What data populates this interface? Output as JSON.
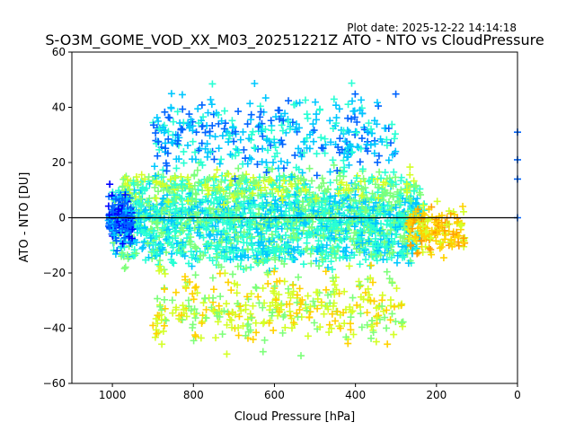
{
  "chart_data": {
    "type": "scatter",
    "title": "S-O3M_GOME_VOD_XX_M03_20251221Z ATO - NTO vs CloudPressure",
    "subtitle": "Plot date: 2025-12-22 14:14:18",
    "xlabel": "Cloud Pressure [hPa]",
    "ylabel": "ATO - NTO [DU]",
    "xlim": [
      1100,
      0
    ],
    "ylim": [
      -60,
      60
    ],
    "x_inverted": true,
    "x_ticks": [
      1000,
      800,
      600,
      400,
      200,
      0
    ],
    "y_ticks": [
      -60,
      -40,
      -20,
      0,
      20,
      40,
      60
    ],
    "reference_line": {
      "y": 0,
      "color": "#000000"
    },
    "marker": "plus",
    "palette": [
      "#0000ff",
      "#0064ff",
      "#00c8ff",
      "#28ffd4",
      "#7dff7a",
      "#d4ff28",
      "#ffd200",
      "#ffa000"
    ],
    "point_clouds": [
      {
        "name": "bulk",
        "x_range": [
          1000,
          230
        ],
        "y_center": 0,
        "y_spread": 20,
        "color_index": 3
      },
      {
        "name": "upper-bulk",
        "x_range": [
          980,
          250
        ],
        "y_center": 12,
        "y_spread": 10,
        "color_index": 4
      },
      {
        "name": "lower-bulk",
        "x_range": [
          980,
          250
        ],
        "y_center": -12,
        "y_spread": 10,
        "color_index": 3
      },
      {
        "name": "upper-scatter",
        "x_range": [
          900,
          300
        ],
        "y_center": 30,
        "y_spread": 25,
        "color_index": 2
      },
      {
        "name": "lower-scatter",
        "x_range": [
          900,
          280
        ],
        "y_center": -32,
        "y_spread": 25,
        "color_index": 5
      },
      {
        "name": "left-edge",
        "x_range": [
          1010,
          950
        ],
        "y_center": 0,
        "y_spread": 15,
        "color_index": 1
      },
      {
        "name": "right-edge",
        "x_range": [
          270,
          130
        ],
        "y_center": -5,
        "y_spread": 15,
        "color_index": 6
      }
    ]
  }
}
